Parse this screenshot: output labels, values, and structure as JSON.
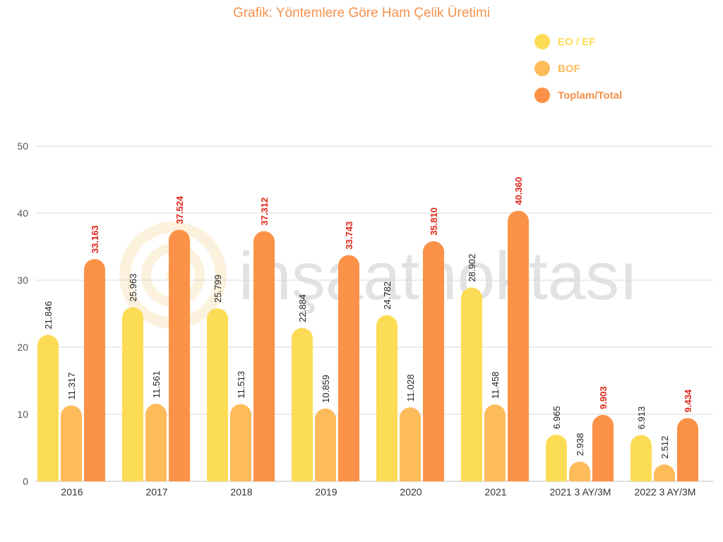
{
  "title": "Grafik: Yöntemlere Göre Ham Çelik Üretimi",
  "watermark": "inşaatnoktası",
  "colors": {
    "eo": "#fddc55",
    "bof": "#fdbb5a",
    "total": "#fc9247",
    "total_label": "#e0261b",
    "title": "#f6924d",
    "grid": "#d9d9d9"
  },
  "legend": [
    {
      "label": "EO / EF",
      "color": "#fddc55",
      "text_color": "#fddc55"
    },
    {
      "label": "BOF",
      "color": "#fdbb5a",
      "text_color": "#fdbb5a"
    },
    {
      "label": "Toplam/Total",
      "color": "#fc9247",
      "text_color": "#f6924d"
    }
  ],
  "chart_data": {
    "type": "bar",
    "title": "Grafik: Yöntemlere Göre Ham Çelik Üretimi",
    "xlabel": "",
    "ylabel": "",
    "ylim": [
      0,
      50
    ],
    "yticks": [
      0,
      10,
      20,
      30,
      40,
      50
    ],
    "grid": true,
    "legend_position": "top-right",
    "categories": [
      "2016",
      "2017",
      "2018",
      "2019",
      "2020",
      "2021",
      "2021 3 AY/3M",
      "2022 3 AY/3M"
    ],
    "series": [
      {
        "name": "EO / EF",
        "values": [
          21.846,
          25.963,
          25.799,
          22.884,
          24.782,
          28.902,
          6.965,
          6.913
        ],
        "labels": [
          "21.846",
          "25.963",
          "25.799",
          "22.884",
          "24.782",
          "28.902",
          "6.965",
          "6.913"
        ]
      },
      {
        "name": "BOF",
        "values": [
          11.317,
          11.561,
          11.513,
          10.859,
          11.028,
          11.458,
          2.938,
          2.512
        ],
        "labels": [
          "11.317",
          "11.561",
          "11.513",
          "10.859",
          "11.028",
          "11.458",
          "2.938",
          "2.512"
        ]
      },
      {
        "name": "Toplam/Total",
        "values": [
          33.163,
          37.524,
          37.312,
          33.743,
          35.81,
          40.36,
          9.903,
          9.434
        ],
        "labels": [
          "33.163",
          "37.524",
          "37.312",
          "33.743",
          "35.810",
          "40.360",
          "9.903",
          "9.434"
        ]
      }
    ]
  }
}
